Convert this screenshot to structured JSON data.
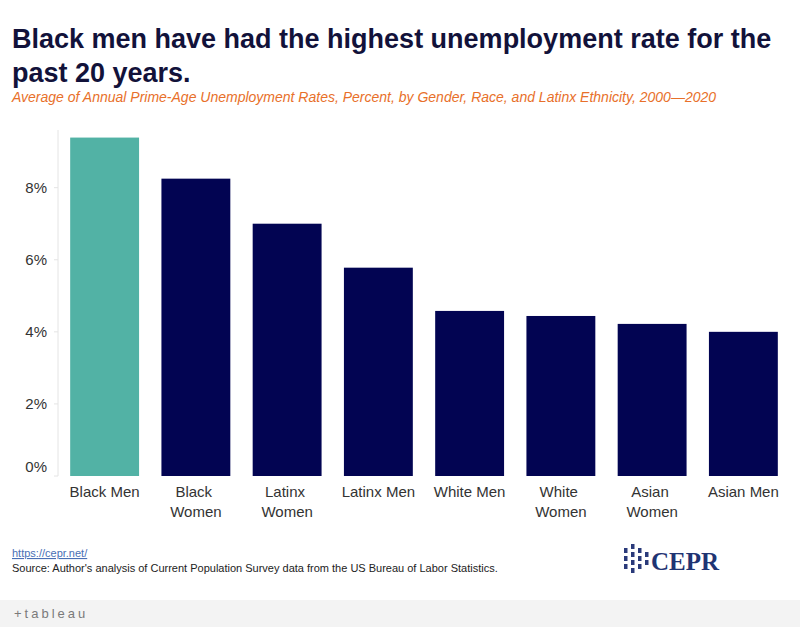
{
  "chart_data": {
    "type": "bar",
    "title": "Black men have had the highest unemployment rate for the past 20 years.",
    "subtitle": "Average of Annual Prime-Age Unemployment Rates, Percent, by Gender, Race, and Latinx Ethnicity, 2000—2020",
    "categories": [
      "Black Men",
      "Black Women",
      "Latinx Women",
      "Latinx Men",
      "White Men",
      "White Women",
      "Asian Women",
      "Asian Men"
    ],
    "values": [
      9.39,
      8.25,
      7.0,
      5.78,
      4.58,
      4.44,
      4.22,
      4.0
    ],
    "colors": [
      "#52b2a5",
      "#020452",
      "#020452",
      "#020452",
      "#020452",
      "#020452",
      "#020452",
      "#020452"
    ],
    "ylim": [
      0,
      9.6
    ],
    "yticks": [
      {
        "value": 0,
        "label": "0%"
      },
      {
        "value": 2,
        "label": "2%"
      },
      {
        "value": 4,
        "label": "4%"
      },
      {
        "value": 6,
        "label": "6%"
      },
      {
        "value": 8,
        "label": "8%"
      }
    ],
    "grid": false,
    "data_labels": false,
    "source_link": "https://cepr.net/",
    "source": "Source: Author's analysis of Current Population Survey data from the US Bureau of Labor Statistics.",
    "logo": "CEPR",
    "footer": "+tableau"
  }
}
